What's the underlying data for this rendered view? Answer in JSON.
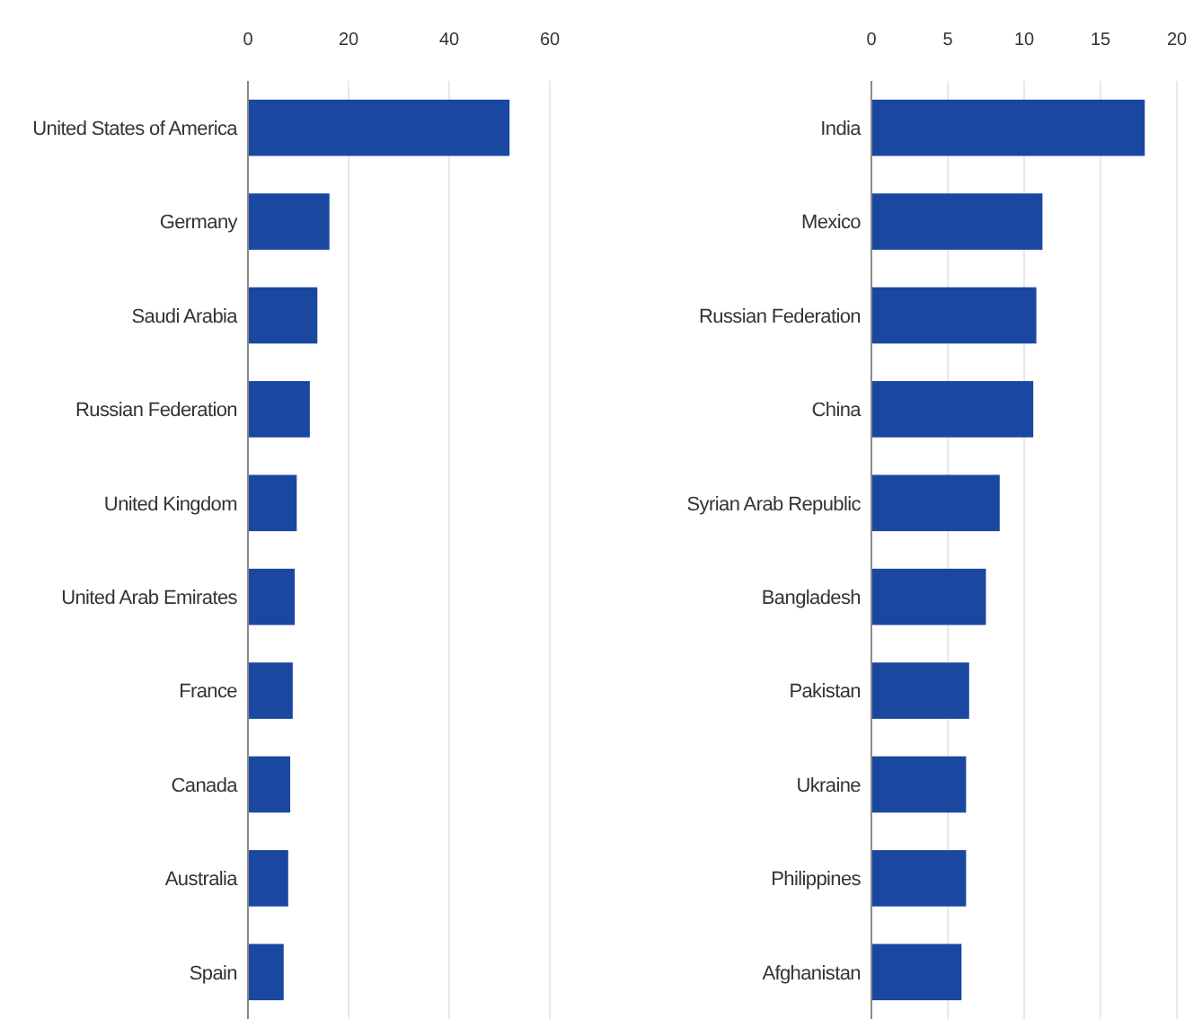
{
  "chart_data": [
    {
      "type": "bar",
      "orientation": "horizontal",
      "categories": [
        "United States of America",
        "Germany",
        "Saudi Arabia",
        "Russian Federation",
        "United Kingdom",
        "United Arab Emirates",
        "France",
        "Canada",
        "Australia",
        "Spain"
      ],
      "values": [
        52,
        16.2,
        13.8,
        12.3,
        9.7,
        9.3,
        8.9,
        8.4,
        8.0,
        7.1
      ],
      "color": "#1a47a0",
      "xlim": [
        0,
        60
      ],
      "xticks": [
        0,
        20,
        40,
        60
      ],
      "grid": "x"
    },
    {
      "type": "bar",
      "orientation": "horizontal",
      "categories": [
        "India",
        "Mexico",
        "Russian Federation",
        "China",
        "Syrian Arab Republic",
        "Bangladesh",
        "Pakistan",
        "Ukraine",
        "Philippines",
        "Afghanistan"
      ],
      "values": [
        17.9,
        11.2,
        10.8,
        10.6,
        8.4,
        7.5,
        6.4,
        6.2,
        6.2,
        5.9
      ],
      "color": "#1a47a0",
      "xlim": [
        0,
        20
      ],
      "xticks": [
        0,
        5,
        10,
        15,
        20
      ],
      "grid": "x"
    }
  ]
}
